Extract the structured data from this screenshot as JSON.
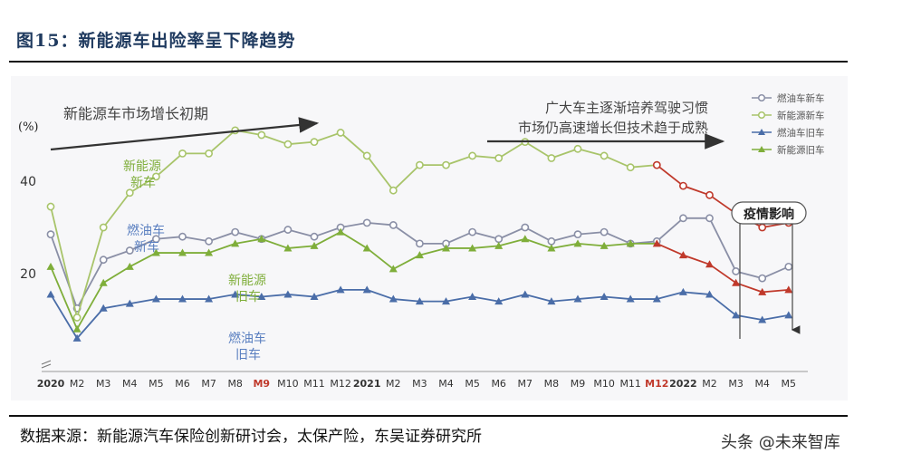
{
  "figure_title": "图15：新能源车出险率呈下降趋势",
  "source": "数据来源：新能源汽车保险创新研讨会，太保产险，东吴证券研究所",
  "watermark": "头条 @未来智库",
  "colors": {
    "ice_new": "#8a8fa6",
    "nev_new": "#a8c46a",
    "ice_old": "#4a6da8",
    "nev_old": "#7fae3a",
    "post_2022": "#c0392b",
    "annotation_text": "#444444",
    "callout_text": "#7fae3a",
    "callout_blue": "#5a7fc0"
  },
  "chart_data": {
    "type": "line",
    "ylabel": "(%)",
    "y_ticks": [
      20,
      40
    ],
    "ylim": [
      2,
      58
    ],
    "categories": [
      "2020",
      "M2",
      "M3",
      "M4",
      "M5",
      "M6",
      "M7",
      "M8",
      "M9",
      "M10",
      "M11",
      "M12",
      "2021",
      "M2",
      "M3",
      "M4",
      "M5",
      "M6",
      "M7",
      "M8",
      "M9",
      "M10",
      "M11",
      "M12",
      "2022",
      "M2",
      "M3",
      "M4",
      "M5"
    ],
    "highlight_categories": [
      {
        "label": "M9",
        "index": 8
      },
      {
        "label": "M12",
        "index": 23
      }
    ],
    "bold_categories": [
      0,
      12,
      24
    ],
    "red_from_index": 23,
    "series": [
      {
        "name": "燃油车新车",
        "key": "ice_new",
        "marker": "circle",
        "values": [
          28.5,
          12.5,
          23,
          25,
          27.5,
          28,
          27,
          29,
          27.5,
          29.5,
          28,
          30,
          31,
          30.5,
          26.5,
          26.5,
          29,
          27.5,
          30,
          27,
          28.5,
          29,
          26.5,
          27,
          32,
          32,
          20.5,
          19,
          21.5
        ]
      },
      {
        "name": "新能源新车",
        "key": "nev_new",
        "marker": "circle",
        "values": [
          34.5,
          10.5,
          30,
          37.5,
          41,
          46,
          46,
          51,
          50,
          48,
          48.5,
          50.5,
          45.5,
          38,
          43.5,
          43.5,
          45.5,
          45,
          48.5,
          45,
          47,
          45.5,
          43,
          43.5,
          39,
          37,
          33,
          30,
          31
        ]
      },
      {
        "name": "燃油车旧车",
        "key": "ice_old",
        "marker": "triangle",
        "values": [
          15.5,
          6,
          12.5,
          13.5,
          14.5,
          14.5,
          14.5,
          15.5,
          15,
          15.5,
          15,
          16.5,
          16.5,
          14.5,
          14,
          14,
          15,
          14,
          15.5,
          14,
          14.5,
          15,
          14.5,
          14.5,
          16,
          15.5,
          11,
          10,
          11
        ]
      },
      {
        "name": "新能源旧车",
        "key": "nev_old",
        "marker": "triangle",
        "values": [
          21.5,
          8,
          18,
          21.5,
          24.5,
          24.5,
          24.5,
          26.5,
          27.5,
          25.5,
          26,
          29,
          25.5,
          21,
          24,
          25.5,
          25.5,
          26,
          27.5,
          25.5,
          26.5,
          26,
          26.5,
          26.5,
          24,
          22,
          18,
          16,
          16.5
        ]
      }
    ],
    "legend": {
      "position": "top-right",
      "entries": [
        "燃油车新车",
        "新能源新车",
        "燃油车旧车",
        "新能源旧车"
      ]
    },
    "annotations": {
      "arrow_left": "新能源车市场增长初期",
      "arrow_right_line1": "广大车主逐渐培养驾驶习惯",
      "arrow_right_line2": "市场仍高速增长但技术趋于成熟",
      "callout_nev_new_1": "新能源",
      "callout_nev_new_2": "新车",
      "callout_ice_new_1": "燃油车",
      "callout_ice_new_2": "新车",
      "callout_nev_old_1": "新能源",
      "callout_nev_old_2": "旧车",
      "callout_ice_old_1": "燃油车",
      "callout_ice_old_2": "旧车",
      "covid_label": "疫情影响"
    }
  }
}
